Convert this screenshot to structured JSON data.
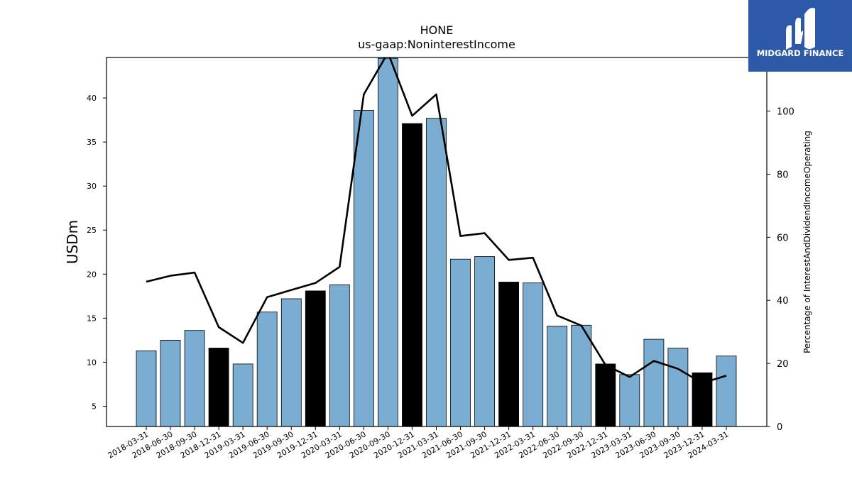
{
  "brand": {
    "name": "MIDGARD FINANCE",
    "color": "#2d5aa8"
  },
  "chart_data": {
    "type": "bar",
    "title": "HONE",
    "subtitle": "us-gaap:NoninterestIncome",
    "ylabel": "USDm",
    "ylabel_right": "Percentage of InterestAndDividendIncomeOperating",
    "ylim": [
      2.7,
      44.6
    ],
    "ylim_right": [
      0,
      117
    ],
    "yticks": [
      5,
      10,
      15,
      20,
      25,
      30,
      35,
      40
    ],
    "yticks_right": [
      0,
      20,
      40,
      60,
      80,
      100
    ],
    "grid": false,
    "categories": [
      "2018-03-31",
      "2018-06-30",
      "2018-09-30",
      "2018-12-31",
      "2019-03-31",
      "2019-06-30",
      "2019-09-30",
      "2019-12-31",
      "2020-03-31",
      "2020-06-30",
      "2020-09-30",
      "2020-12-31",
      "2021-03-31",
      "2021-06-30",
      "2021-09-30",
      "2021-12-31",
      "2022-03-31",
      "2022-06-30",
      "2022-09-30",
      "2022-12-31",
      "2023-03-31",
      "2023-06-30",
      "2023-09-30",
      "2023-12-31",
      "2024-03-31"
    ],
    "series": [
      {
        "type": "bar",
        "axis": "left",
        "values": [
          11.3,
          12.5,
          13.6,
          11.6,
          9.8,
          15.7,
          17.2,
          18.1,
          18.8,
          38.6,
          44.5,
          37.1,
          37.7,
          21.7,
          22.0,
          19.1,
          19.0,
          14.1,
          14.2,
          9.8,
          8.6,
          12.6,
          11.6,
          8.8,
          10.7
        ]
      },
      {
        "type": "line",
        "axis": "right",
        "values": [
          45.9,
          47.8,
          48.8,
          31.5,
          26.5,
          41.0,
          43.3,
          45.5,
          50.6,
          105.3,
          118.5,
          98.5,
          105.3,
          60.4,
          61.3,
          52.8,
          53.5,
          35.2,
          32.0,
          19.5,
          15.7,
          20.8,
          18.3,
          13.8,
          16.1
        ]
      }
    ],
    "bar_colors": {
      "default": "#7aadd1",
      "year_end": "#000000"
    },
    "line_color": "#000000"
  }
}
